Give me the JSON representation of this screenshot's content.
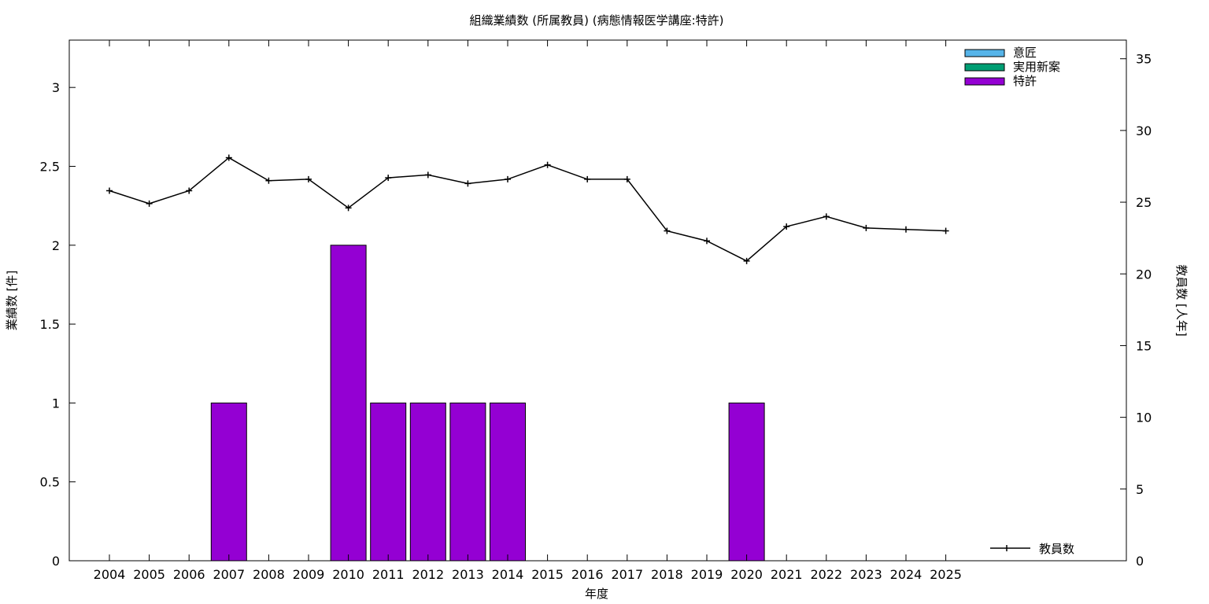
{
  "chart_data": {
    "type": "bar",
    "title": "組織業績数 (所属教員) (病態情報医学講座:特許)",
    "xlabel": "年度",
    "ylabel": "業績数 [件]",
    "y2label": "教員数 [人年]",
    "categories": [
      "2004",
      "2005",
      "2006",
      "2007",
      "2008",
      "2009",
      "2010",
      "2011",
      "2012",
      "2013",
      "2014",
      "2015",
      "2016",
      "2017",
      "2018",
      "2019",
      "2020",
      "2021",
      "2022",
      "2023",
      "2024",
      "2025"
    ],
    "ylim": [
      0,
      3.3
    ],
    "y2lim": [
      0,
      36.3
    ],
    "yticks": [
      "0",
      "0.5",
      "1",
      "1.5",
      "2",
      "2.5",
      "3"
    ],
    "y2ticks": [
      "0",
      "5",
      "10",
      "15",
      "20",
      "25",
      "30",
      "35"
    ],
    "series": [
      {
        "name": "意匠",
        "color": "#56b4e9",
        "values": [
          0,
          0,
          0,
          0,
          0,
          0,
          0,
          0,
          0,
          0,
          0,
          0,
          0,
          0,
          0,
          0,
          0,
          0,
          0,
          0,
          0,
          0
        ]
      },
      {
        "name": "実用新案",
        "color": "#009e73",
        "values": [
          0,
          0,
          0,
          0,
          0,
          0,
          0,
          0,
          0,
          0,
          0,
          0,
          0,
          0,
          0,
          0,
          0,
          0,
          0,
          0,
          0,
          0
        ]
      },
      {
        "name": "特許",
        "color": "#9400d3",
        "values": [
          0,
          0,
          0,
          1,
          0,
          0,
          2,
          1,
          1,
          1,
          1,
          0,
          0,
          0,
          0,
          0,
          1,
          0,
          0,
          0,
          0,
          0
        ]
      }
    ],
    "line_series": {
      "name": "教員数",
      "axis": "right",
      "color": "#000000",
      "values": [
        25.8,
        24.9,
        25.8,
        28.1,
        26.5,
        26.6,
        24.6,
        26.7,
        26.9,
        26.3,
        26.6,
        27.6,
        26.6,
        26.6,
        23.0,
        22.3,
        20.9,
        23.3,
        24.0,
        23.2,
        23.1,
        23.0
      ]
    },
    "legend_position": "top-right",
    "line_legend_position": "bottom-right",
    "grid": false
  }
}
